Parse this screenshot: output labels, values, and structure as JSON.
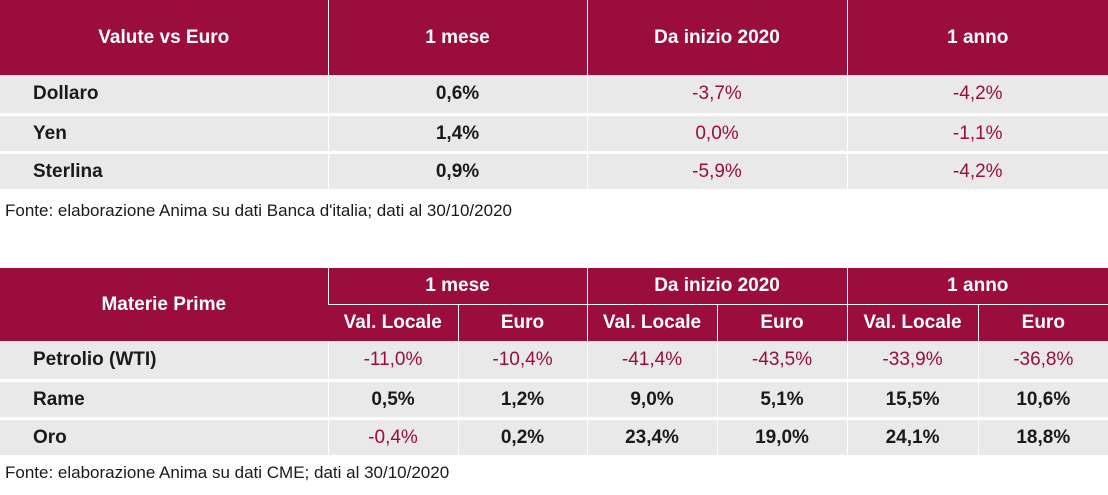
{
  "valute": {
    "headers": [
      "Valute vs Euro",
      "1 mese",
      "Da inizio 2020",
      "1 anno"
    ],
    "rows": [
      {
        "name": "Dollaro",
        "m1": "0,6%",
        "ytd": "-3,7%",
        "y1": "-4,2%"
      },
      {
        "name": "Yen",
        "m1": "1,4%",
        "ytd": "0,0%",
        "y1": "-1,1%"
      },
      {
        "name": "Sterlina",
        "m1": "0,9%",
        "ytd": "-5,9%",
        "y1": "-4,2%"
      }
    ],
    "source": "Fonte: elaborazione Anima su dati Banca d'italia; dati al 30/10/2020"
  },
  "materie": {
    "title": "Materie Prime",
    "groups": [
      "1 mese",
      "Da inizio 2020",
      "1 anno"
    ],
    "subheaders": [
      "Val. Locale",
      "Euro",
      "Val. Locale",
      "Euro",
      "Val. Locale",
      "Euro"
    ],
    "rows": [
      {
        "name": "Petrolio (WTI)",
        "values": [
          "-11,0%",
          "-10,4%",
          "-41,4%",
          "-43,5%",
          "-33,9%",
          "-36,8%"
        ]
      },
      {
        "name": "Rame",
        "values": [
          "0,5%",
          "1,2%",
          "9,0%",
          "5,1%",
          "15,5%",
          "10,6%"
        ]
      },
      {
        "name": "Oro",
        "values": [
          "-0,4%",
          "0,2%",
          "23,4%",
          "19,0%",
          "24,1%",
          "18,8%"
        ]
      }
    ],
    "source": "Fonte: elaborazione Anima su dati CME; dati al 30/10/2020"
  },
  "colors": {
    "header_bg": "#9b0d3c",
    "negative": "#9b0d3c",
    "row_bg": "#e9e9e9"
  }
}
